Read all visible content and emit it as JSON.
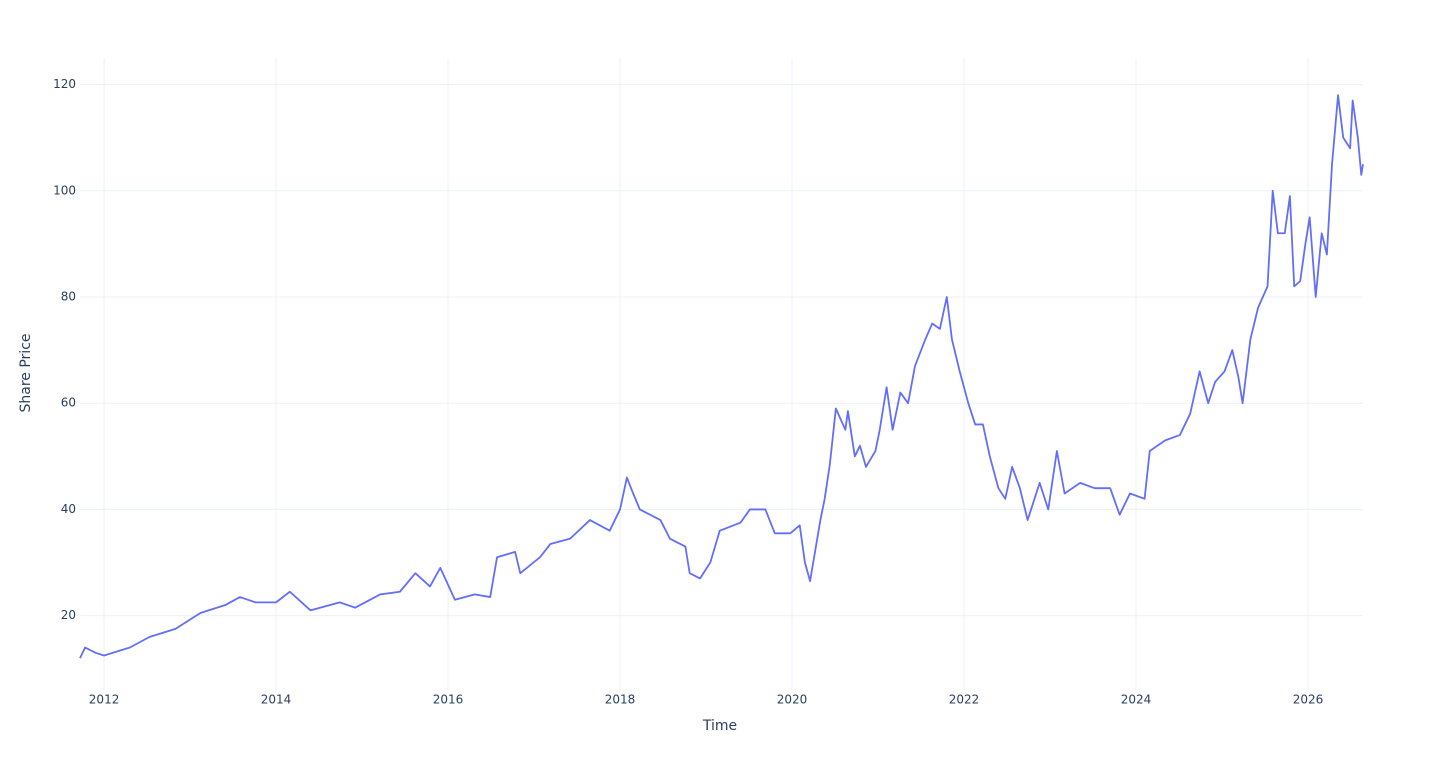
{
  "chart_data": {
    "type": "line",
    "x_label": "Time",
    "y_label": "Share Price",
    "x": [
      2011.72,
      2011.78,
      2011.9,
      2012.0,
      2012.3,
      2012.53,
      2012.83,
      2013.12,
      2013.41,
      2013.58,
      2013.76,
      2014.0,
      2014.16,
      2014.4,
      2014.74,
      2014.92,
      2015.21,
      2015.44,
      2015.62,
      2015.79,
      2015.91,
      2016.08,
      2016.31,
      2016.49,
      2016.57,
      2016.78,
      2016.84,
      2017.07,
      2017.19,
      2017.42,
      2017.65,
      2017.88,
      2018.0,
      2018.08,
      2018.14,
      2018.23,
      2018.47,
      2018.58,
      2018.76,
      2018.81,
      2018.93,
      2019.05,
      2019.16,
      2019.4,
      2019.51,
      2019.69,
      2019.8,
      2019.98,
      2020.09,
      2020.15,
      2020.21,
      2020.33,
      2020.38,
      2020.44,
      2020.51,
      2020.62,
      2020.65,
      2020.73,
      2020.79,
      2020.86,
      2020.97,
      2021.02,
      2021.1,
      2021.17,
      2021.26,
      2021.35,
      2021.43,
      2021.55,
      2021.63,
      2021.72,
      2021.8,
      2021.86,
      2021.95,
      2022.05,
      2022.13,
      2022.22,
      2022.3,
      2022.4,
      2022.48,
      2022.56,
      2022.65,
      2022.74,
      2022.88,
      2022.98,
      2023.08,
      2023.17,
      2023.35,
      2023.52,
      2023.7,
      2023.81,
      2023.93,
      2024.1,
      2024.16,
      2024.34,
      2024.51,
      2024.63,
      2024.74,
      2024.84,
      2024.92,
      2025.03,
      2025.12,
      2025.19,
      2025.24,
      2025.33,
      2025.42,
      2025.53,
      2025.59,
      2025.65,
      2025.73,
      2025.79,
      2025.84,
      2025.91,
      2025.97,
      2026.02,
      2026.09,
      2026.16,
      2026.22,
      2026.28,
      2026.35,
      2026.41,
      2026.49,
      2026.52,
      2026.58,
      2026.62,
      2026.64
    ],
    "series": [
      {
        "color": "#636efa",
        "values": [
          12,
          14,
          13,
          12.5,
          14,
          16,
          17.5,
          20.5,
          22,
          23.5,
          22.5,
          22.5,
          24.5,
          21,
          22.5,
          21.5,
          24,
          24.5,
          28,
          25.5,
          29,
          23,
          24,
          23.5,
          31,
          32,
          28,
          31,
          33.5,
          34.5,
          38,
          36,
          40,
          46,
          43.5,
          40,
          38,
          34.5,
          33,
          28,
          27,
          30,
          36,
          37.5,
          40,
          40,
          35.5,
          35.5,
          37,
          30,
          26.5,
          38,
          42,
          48.5,
          59,
          55,
          58.5,
          50,
          52,
          48,
          51,
          55,
          63,
          55,
          62,
          60,
          67,
          72,
          75,
          74,
          80,
          72,
          66,
          60,
          56,
          56,
          50,
          44,
          42,
          48,
          44,
          38,
          45,
          40,
          51,
          43,
          45,
          44,
          44,
          39,
          43,
          42,
          51,
          53,
          54,
          58,
          66,
          60,
          64,
          66,
          70,
          65,
          60,
          72,
          78,
          82,
          100,
          92,
          92,
          99,
          82,
          83,
          90,
          95,
          80,
          92,
          88,
          105,
          118,
          110,
          108,
          117,
          110,
          103,
          105
        ]
      }
    ],
    "xlim": [
      2011.72,
      2026.64
    ],
    "ylim": [
      6,
      125
    ],
    "xticks": [
      2012,
      2014,
      2016,
      2018,
      2020,
      2022,
      2024,
      2026
    ],
    "yticks": [
      20,
      40,
      60,
      80,
      100,
      120
    ],
    "grid": true
  }
}
